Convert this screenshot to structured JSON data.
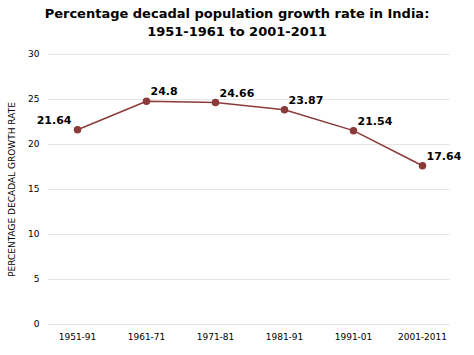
{
  "chart_data": {
    "type": "line",
    "title": "Percentage decadal population growth rate in India:",
    "subtitle": "1951-1961 to 2001-2011",
    "y_label": "PERCENTAGE DECADAL GROWTH RATE",
    "categories": [
      "1951-91",
      "1961-71",
      "1971-81",
      "1981-91",
      "1991-01",
      "2001-2011"
    ],
    "values": [
      21.64,
      24.8,
      24.66,
      23.87,
      21.54,
      17.64
    ],
    "color": "#8B3A3A",
    "marker": "circle",
    "ylim": [
      0,
      30
    ],
    "yticks": [
      0,
      5,
      10,
      15,
      20,
      25,
      30
    ],
    "grid": true,
    "data_labels": true
  }
}
